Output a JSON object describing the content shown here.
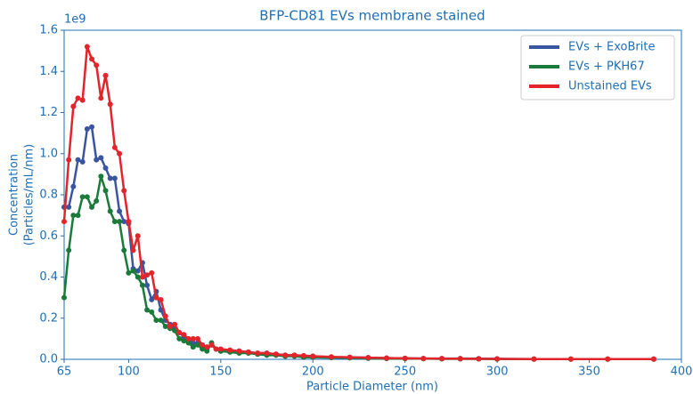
{
  "chart_data": {
    "type": "line",
    "title": "BFP-CD81 EVs membrane stained",
    "x_label": "Particle Diameter (nm)",
    "y_label": [
      "Concentration",
      "(Particles/mL/nm)"
    ],
    "y_scale_label": "1e9",
    "x": [
      65,
      67.5,
      70,
      72.5,
      75,
      77.5,
      80,
      82.5,
      85,
      87.5,
      90,
      92.5,
      95,
      97.5,
      100,
      102.5,
      105,
      107.5,
      110,
      112.5,
      115,
      117.5,
      120,
      122.5,
      125,
      127.5,
      130,
      132.5,
      135,
      137.5,
      140,
      142.5,
      145,
      147.5,
      150,
      155,
      160,
      165,
      170,
      175,
      180,
      185,
      190,
      195,
      200,
      210,
      220,
      230,
      240,
      250,
      260,
      270,
      280,
      290,
      300,
      320,
      340,
      360,
      385
    ],
    "series": [
      {
        "name": "EVs + ExoBrite",
        "color": "#3a55a0",
        "values": [
          0.74,
          0.74,
          0.84,
          0.97,
          0.96,
          1.12,
          1.13,
          0.97,
          0.98,
          0.93,
          0.88,
          0.88,
          0.72,
          0.67,
          0.66,
          0.44,
          0.43,
          0.47,
          0.36,
          0.29,
          0.33,
          0.24,
          0.19,
          0.17,
          0.15,
          0.13,
          0.11,
          0.09,
          0.08,
          0.08,
          0.06,
          0.05,
          0.07,
          0.05,
          0.04,
          0.04,
          0.04,
          0.035,
          0.03,
          0.03,
          0.025,
          0.02,
          0.02,
          0.015,
          0.015,
          0.01,
          0.01,
          0.008,
          0.006,
          0.005,
          0.004,
          0.003,
          0.004,
          0.003,
          0.002,
          0.001,
          0.001,
          0.001,
          0.001
        ]
      },
      {
        "name": "EVs + PKH67",
        "color": "#1a7a3a",
        "values": [
          0.3,
          0.53,
          0.7,
          0.7,
          0.79,
          0.79,
          0.74,
          0.77,
          0.89,
          0.82,
          0.72,
          0.67,
          0.67,
          0.53,
          0.42,
          0.43,
          0.4,
          0.36,
          0.24,
          0.23,
          0.19,
          0.19,
          0.16,
          0.15,
          0.14,
          0.1,
          0.09,
          0.08,
          0.06,
          0.07,
          0.05,
          0.04,
          0.08,
          0.05,
          0.04,
          0.035,
          0.03,
          0.03,
          0.025,
          0.02,
          0.02,
          0.015,
          0.015,
          0.01,
          0.01,
          0.008,
          0.007,
          0.005,
          0.004,
          0.003,
          0.003,
          0.002,
          0.002,
          0.002,
          0.001,
          0.001,
          0.001,
          0.001,
          0.001
        ]
      },
      {
        "name": "Unstained EVs",
        "color": "#e3242b",
        "values": [
          0.67,
          0.97,
          1.23,
          1.27,
          1.26,
          1.52,
          1.46,
          1.43,
          1.27,
          1.38,
          1.24,
          1.03,
          1.0,
          0.82,
          0.67,
          0.53,
          0.6,
          0.4,
          0.41,
          0.42,
          0.3,
          0.29,
          0.21,
          0.16,
          0.17,
          0.13,
          0.12,
          0.1,
          0.1,
          0.1,
          0.07,
          0.06,
          0.07,
          0.05,
          0.05,
          0.045,
          0.04,
          0.035,
          0.03,
          0.03,
          0.025,
          0.02,
          0.02,
          0.018,
          0.015,
          0.012,
          0.01,
          0.008,
          0.006,
          0.005,
          0.004,
          0.004,
          0.003,
          0.002,
          0.002,
          0.001,
          0.001,
          0.001,
          0.001
        ]
      }
    ],
    "xlim": [
      65,
      400
    ],
    "xticks": [
      65,
      100,
      150,
      200,
      250,
      300,
      350,
      400
    ],
    "ylim": [
      0,
      1.6
    ],
    "yticks": [
      {
        "value": 0,
        "label": "0.0"
      },
      0.2,
      0.4,
      0.6,
      0.8,
      {
        "value": 1,
        "label": "1.0"
      },
      1.2,
      1.4,
      1.6
    ],
    "legend": "upper right"
  }
}
